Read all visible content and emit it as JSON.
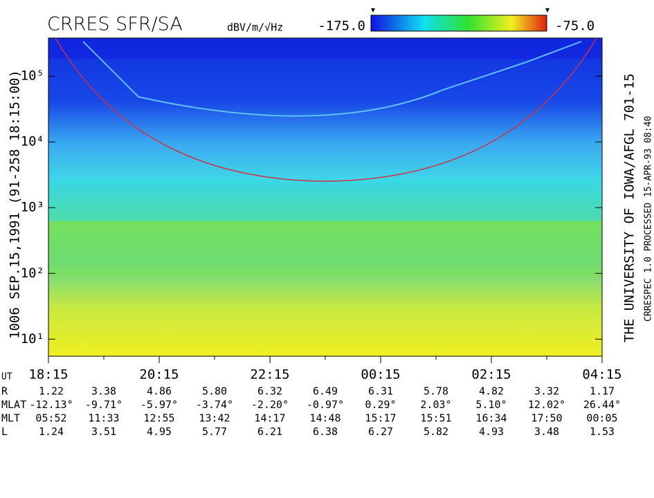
{
  "chart_data": {
    "type": "spectrogram",
    "title": "CRRES SFR/SA",
    "colorbar": {
      "unit": "dBV/m/√Hz",
      "min_label": "-175.0",
      "max_label": "-75.0"
    },
    "left_label": "1006  SEP.15,1991  (91-258 18:15:00)",
    "right_label": "THE UNIVERSITY OF IOWA/AFGL 701-15",
    "right_label2": "CRRESPEC 1.0  PROCESSED 15-APR-93  08:40",
    "log_y": true,
    "ylim": [
      5.5,
      380000
    ],
    "yticks": [
      {
        "value": 10,
        "label": "10¹"
      },
      {
        "value": 100,
        "label": "10²"
      },
      {
        "value": 1000,
        "label": "10³"
      },
      {
        "value": 10000,
        "label": "10⁴"
      },
      {
        "value": 100000,
        "label": "10⁵"
      }
    ],
    "categories": [
      "18:15",
      null,
      "20:15",
      null,
      "22:15",
      null,
      "00:15",
      null,
      "02:15",
      null,
      "04:15"
    ]
  },
  "ephemeris": {
    "ut_label": "UT",
    "rows": [
      {
        "label": "R",
        "values": [
          "1.22",
          "3.38",
          "4.86",
          "5.80",
          "6.32",
          "6.49",
          "6.31",
          "5.78",
          "4.82",
          "3.32",
          "1.17"
        ]
      },
      {
        "label": "MLAT",
        "values": [
          "-12.13°",
          "-9.71°",
          "-5.97°",
          "-3.74°",
          "-2.20°",
          "-0.97°",
          "0.29°",
          "2.03°",
          "5.10°",
          "12.02°",
          "26.44°"
        ]
      },
      {
        "label": "MLT",
        "values": [
          "05:52",
          "11:33",
          "12:55",
          "13:42",
          "14:17",
          "14:48",
          "15:17",
          "15:51",
          "16:34",
          "17:50",
          "00:05"
        ]
      },
      {
        "label": "L",
        "values": [
          "1.24",
          "3.51",
          "4.95",
          "5.77",
          "6.21",
          "6.38",
          "6.27",
          "5.82",
          "4.93",
          "3.48",
          "1.53"
        ]
      }
    ]
  }
}
